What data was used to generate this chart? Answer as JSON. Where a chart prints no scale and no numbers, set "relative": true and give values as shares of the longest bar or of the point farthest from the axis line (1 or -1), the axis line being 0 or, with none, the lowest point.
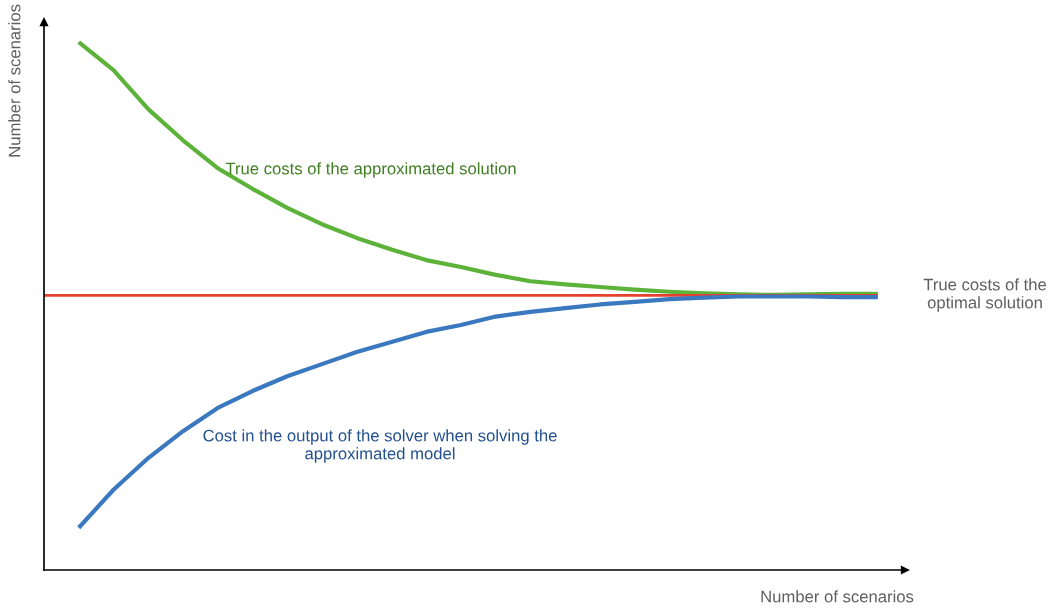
{
  "chart_data": {
    "type": "line",
    "relative": true,
    "xlabel": "Number of scenarios",
    "ylabel": "Number of scenarios",
    "legend": false,
    "tick_labels": false,
    "categories": [
      null,
      null,
      null,
      null,
      null,
      null,
      null,
      null,
      null,
      null,
      null,
      null,
      null,
      null,
      null,
      null,
      null,
      null,
      null,
      null,
      null,
      null,
      null,
      null,
      null
    ],
    "series": [
      {
        "name": "True costs of the approximated solution",
        "color": "#5db33a",
        "values": [
          null,
          1.0,
          0.947,
          0.873,
          0.814,
          0.761,
          0.722,
          0.686,
          0.655,
          0.629,
          0.607,
          0.587,
          0.574,
          0.559,
          0.547,
          0.541,
          0.536,
          0.531,
          0.527,
          0.524,
          0.522,
          0.521,
          0.522,
          0.523,
          0.523
        ]
      },
      {
        "name": "True costs of the optimal solution",
        "color": "#e8402f",
        "values": [
          0.52,
          0.52,
          0.52,
          0.52,
          0.52,
          0.52,
          0.52,
          0.52,
          0.52,
          0.52,
          0.52,
          0.52,
          0.52,
          0.52,
          0.52,
          0.52,
          0.52,
          0.52,
          0.52,
          0.52,
          0.52,
          0.52,
          0.52,
          0.52,
          0.52
        ]
      },
      {
        "name": "Cost in the output of the solver when solving the approximated model",
        "color": "#3a78c0",
        "values": [
          null,
          0.08,
          0.152,
          0.212,
          0.263,
          0.307,
          0.339,
          0.367,
          0.39,
          0.413,
          0.432,
          0.451,
          0.464,
          0.48,
          0.489,
          0.496,
          0.503,
          0.508,
          0.513,
          0.516,
          0.518,
          0.518,
          0.518,
          0.517,
          0.517
        ]
      }
    ]
  }
}
